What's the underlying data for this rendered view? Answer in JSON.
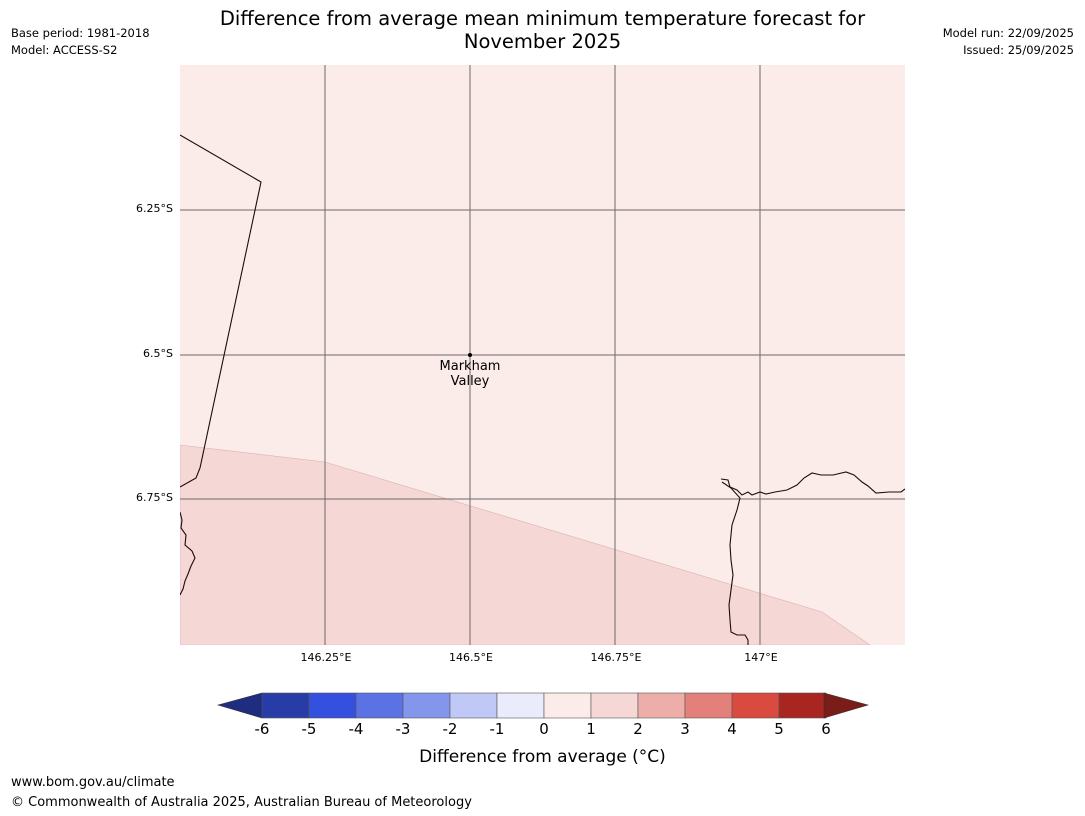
{
  "title_line1": "Difference from average mean minimum temperature forecast for",
  "title_line2": "November 2025",
  "base_period": "Base period: 1981-2018",
  "model": "Model: ACCESS-S2",
  "model_run": "Model run: 22/09/2025",
  "issued": "Issued: 25/09/2025",
  "map": {
    "lat_ticks": [
      "6.25°S",
      "6.5°S",
      "6.75°S"
    ],
    "lon_ticks": [
      "146.25°E",
      "146.5°E",
      "146.75°E",
      "147°E"
    ],
    "place": {
      "name_line1": "Markham",
      "name_line2": "Valley"
    },
    "zones": [
      {
        "label": "0 to 1",
        "color": "#fbebe9"
      },
      {
        "label": "1 to 2",
        "color": "#f5d7d5"
      }
    ]
  },
  "colorbar": {
    "ticks": [
      "-6",
      "-5",
      "-4",
      "-3",
      "-2",
      "-1",
      "0",
      "1",
      "2",
      "3",
      "4",
      "5",
      "6"
    ],
    "colors": [
      "#283ca8",
      "#3450de",
      "#5a72e4",
      "#8496ec",
      "#c0c8f5",
      "#eaecfc",
      "#fbebe9",
      "#f5d7d5",
      "#edaeaa",
      "#e4807a",
      "#d94a3f",
      "#a8261f"
    ],
    "under_color": "#1e2d80",
    "over_color": "#7a1c18",
    "label": "Difference from average (°C)"
  },
  "footer": {
    "url": "www.bom.gov.au/climate",
    "copyright": "© Commonwealth of Australia 2025, Australian Bureau of Meteorology"
  }
}
